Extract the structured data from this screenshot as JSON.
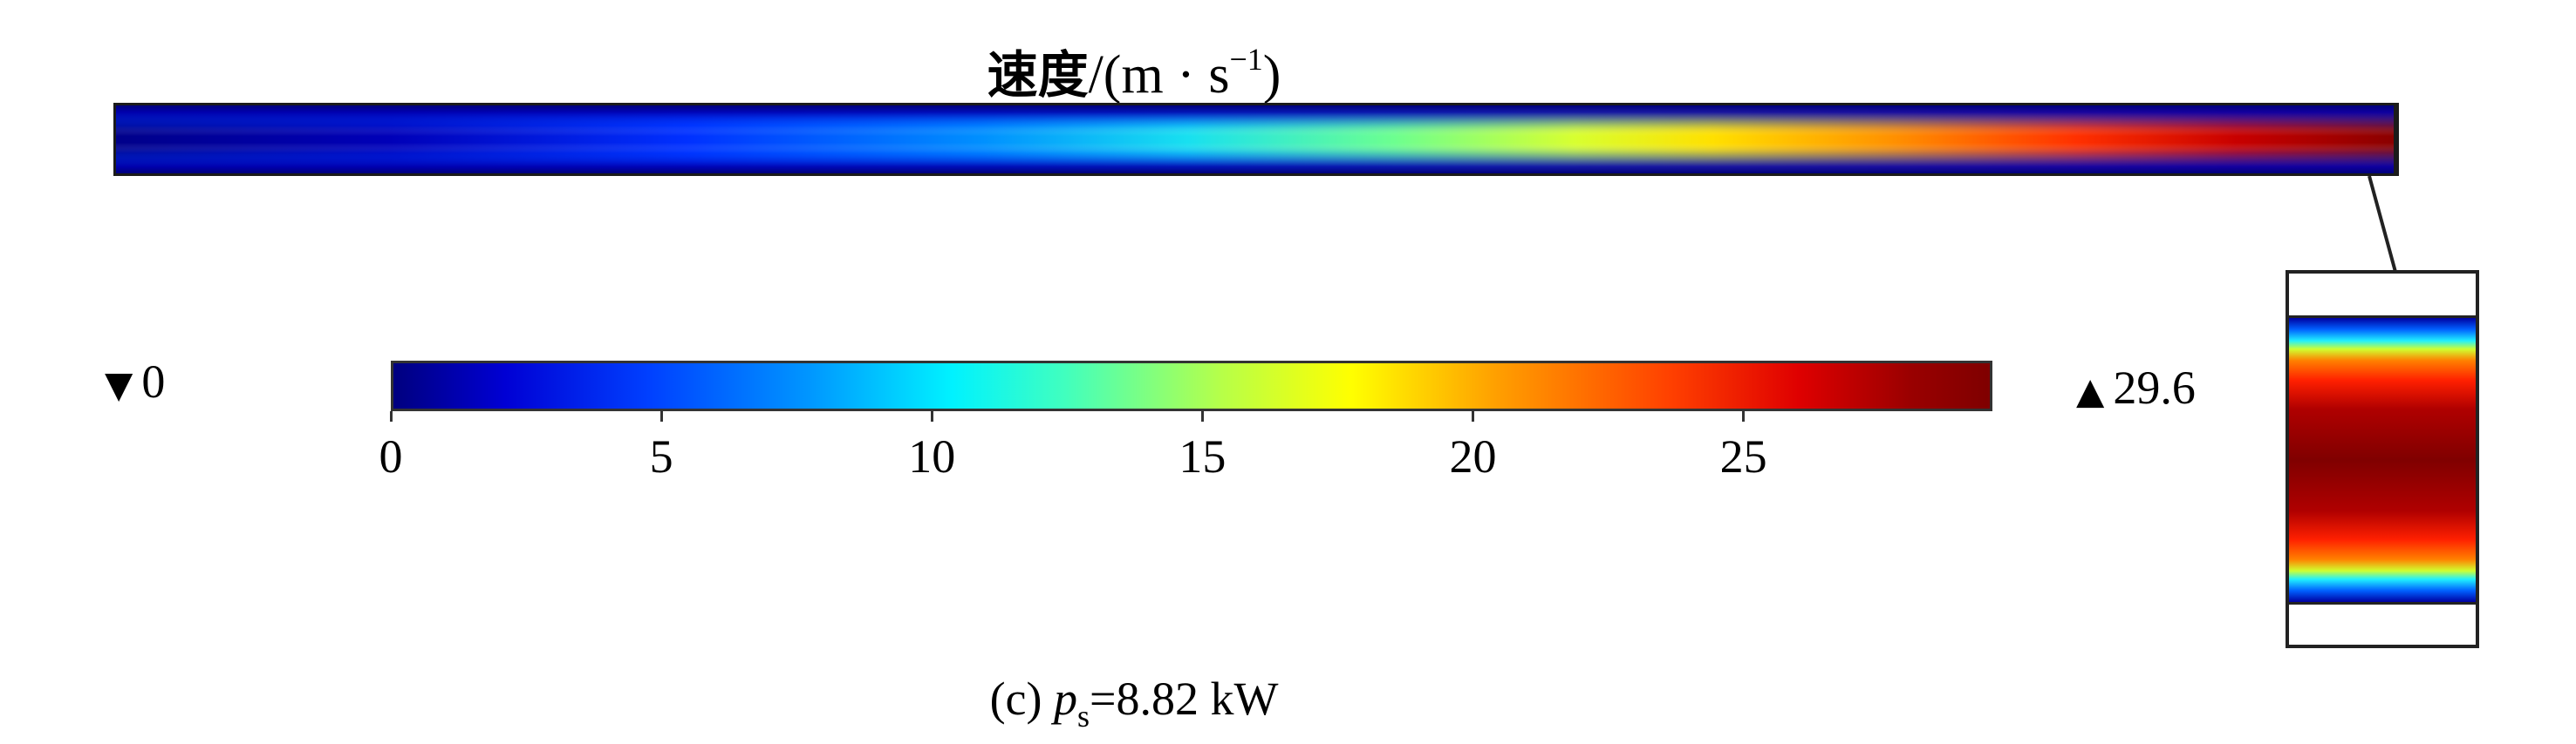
{
  "title": {
    "cjk": "速度",
    "unit_prefix": "/(m · s",
    "unit_exponent": "−1",
    "unit_suffix": ")"
  },
  "legend": {
    "min_marker": "▼",
    "min_value": "0",
    "max_marker": "▲",
    "max_value": "29.6"
  },
  "colorbar": {
    "range": [
      0,
      29.6
    ],
    "ticks": [
      "0",
      "5",
      "10",
      "15",
      "20",
      "25"
    ],
    "colormap": "rainbow"
  },
  "caption": {
    "prefix": "(c) ",
    "var": "p",
    "sub": "s",
    "suffix": "=8.82 kW"
  },
  "colors": {
    "min": "#00007f",
    "max": "#7f0000",
    "border": "#1b1b1b"
  }
}
